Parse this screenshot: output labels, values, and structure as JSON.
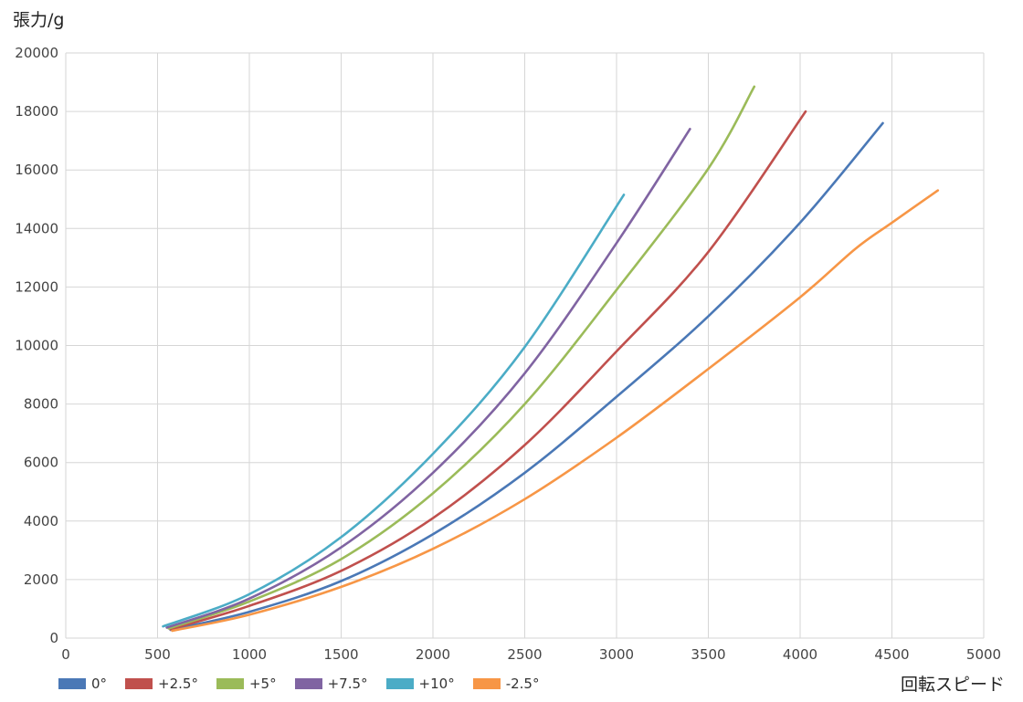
{
  "chart_data": {
    "type": "line",
    "xlabel": "回転スピード",
    "ylabel": "張力/g",
    "xlim": [
      0,
      5000
    ],
    "ylim": [
      0,
      20000
    ],
    "xticks": [
      0,
      500,
      1000,
      1500,
      2000,
      2500,
      3000,
      3500,
      4000,
      4500,
      5000
    ],
    "yticks": [
      0,
      2000,
      4000,
      6000,
      8000,
      10000,
      12000,
      14000,
      16000,
      18000,
      20000
    ],
    "grid": true,
    "legend": "bottom-left",
    "series": [
      {
        "name": "0°",
        "color": "#4a78b6",
        "points": [
          [
            570,
            280
          ],
          [
            1000,
            900
          ],
          [
            1500,
            1950
          ],
          [
            2000,
            3550
          ],
          [
            2500,
            5650
          ],
          [
            3000,
            8250
          ],
          [
            3500,
            11000
          ],
          [
            4000,
            14200
          ],
          [
            4450,
            17600
          ]
        ]
      },
      {
        "name": "+2.5°",
        "color": "#c0504d",
        "points": [
          [
            570,
            300
          ],
          [
            1000,
            1100
          ],
          [
            1500,
            2300
          ],
          [
            2000,
            4100
          ],
          [
            2500,
            6600
          ],
          [
            3000,
            9800
          ],
          [
            3500,
            13200
          ],
          [
            4030,
            18000
          ]
        ]
      },
      {
        "name": "+5°",
        "color": "#9bbb59",
        "points": [
          [
            560,
            330
          ],
          [
            1000,
            1250
          ],
          [
            1500,
            2700
          ],
          [
            2000,
            4950
          ],
          [
            2500,
            8000
          ],
          [
            3000,
            11900
          ],
          [
            3500,
            16050
          ],
          [
            3750,
            18850
          ]
        ]
      },
      {
        "name": "+7.5°",
        "color": "#8064a2",
        "points": [
          [
            550,
            360
          ],
          [
            1000,
            1350
          ],
          [
            1500,
            3100
          ],
          [
            2000,
            5650
          ],
          [
            2500,
            9050
          ],
          [
            3000,
            13500
          ],
          [
            3400,
            17400
          ]
        ]
      },
      {
        "name": "+10°",
        "color": "#4bacc6",
        "points": [
          [
            530,
            400
          ],
          [
            1000,
            1500
          ],
          [
            1500,
            3450
          ],
          [
            2000,
            6300
          ],
          [
            2500,
            9950
          ],
          [
            3040,
            15150
          ]
        ]
      },
      {
        "name": "-2.5°",
        "color": "#f79646",
        "points": [
          [
            580,
            250
          ],
          [
            1000,
            800
          ],
          [
            1500,
            1750
          ],
          [
            2000,
            3050
          ],
          [
            2500,
            4750
          ],
          [
            3000,
            6850
          ],
          [
            3500,
            9200
          ],
          [
            4000,
            11650
          ],
          [
            4300,
            13300
          ],
          [
            4500,
            14200
          ],
          [
            4750,
            15300
          ]
        ]
      }
    ]
  }
}
